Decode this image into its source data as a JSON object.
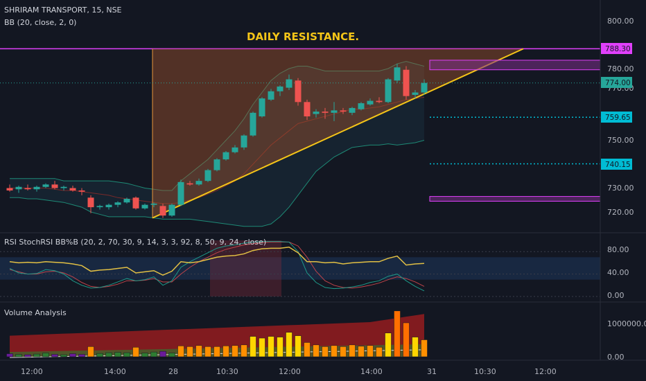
{
  "header": {
    "symbol_line": "SHRIRAM TRANSPORT, 15, NSE",
    "indicator_line": "BB (20, close, 2, 0)"
  },
  "annotation": {
    "title": "DAILY RESISTANCE."
  },
  "rsi_pane": {
    "label": "RSI StochRSI BB%B (20, 2, 70, 30, 9, 14, 3, 3, 92, 8, 50, 9, 24, close)"
  },
  "volume_pane": {
    "label": "Volume Analysis"
  },
  "colors": {
    "background": "#131722",
    "up": "#26a69a",
    "down": "#ef5350",
    "triangle_fill": "#a0522d",
    "trendline": "#f5c518",
    "resistance": "#e040fb",
    "level_cyan": "#00bcd4",
    "bollinger": "#1e8a76",
    "rsi_line": "#e2c044",
    "vol_red_band": "#b01e1e",
    "vol_green_band": "#2e7d32"
  },
  "price_axis": {
    "ticks": [
      "800.00",
      "780.00",
      "770.00",
      "750.00",
      "730.00",
      "720.00"
    ],
    "tags": [
      {
        "label": "788.30",
        "color": "#e040fb",
        "text_color": "#131722"
      },
      {
        "label": "774.00",
        "color": "#26a69a",
        "text_color": "#131722"
      },
      {
        "label": "759.65",
        "color": "#00bcd4",
        "text_color": "#131722"
      },
      {
        "label": "740.15",
        "color": "#00bcd4",
        "text_color": "#131722"
      }
    ]
  },
  "rsi_axis": {
    "ticks": [
      "80.00",
      "40.00",
      "0.00"
    ]
  },
  "volume_axis": {
    "ticks": [
      "1000000.00",
      "0.00"
    ]
  },
  "time_axis": {
    "labels": [
      "12:00",
      "14:00",
      "28",
      "10:30",
      "12:00",
      "14:00",
      "31",
      "10:30",
      "12:00"
    ]
  },
  "chart_data": {
    "type": "candlestick",
    "symbol": "SHRIRAM TRANSPORT",
    "interval": "15",
    "exchange": "NSE",
    "ohlc": [
      {
        "o": 730.0,
        "h": 731.5,
        "l": 728.5,
        "c": 729.0
      },
      {
        "o": 729.5,
        "h": 731.0,
        "l": 728.0,
        "c": 730.5
      },
      {
        "o": 730.0,
        "h": 731.5,
        "l": 729.0,
        "c": 729.5
      },
      {
        "o": 729.5,
        "h": 731.0,
        "l": 728.5,
        "c": 730.5
      },
      {
        "o": 730.5,
        "h": 732.0,
        "l": 730.0,
        "c": 731.5
      },
      {
        "o": 731.5,
        "h": 733.0,
        "l": 729.5,
        "c": 730.0
      },
      {
        "o": 730.0,
        "h": 731.0,
        "l": 729.0,
        "c": 730.5
      },
      {
        "o": 730.0,
        "h": 731.0,
        "l": 728.5,
        "c": 729.0
      },
      {
        "o": 729.0,
        "h": 730.0,
        "l": 727.0,
        "c": 728.5
      },
      {
        "o": 726.0,
        "h": 727.0,
        "l": 719.5,
        "c": 722.0
      },
      {
        "o": 722.0,
        "h": 723.0,
        "l": 721.0,
        "c": 722.5
      },
      {
        "o": 722.0,
        "h": 723.5,
        "l": 721.0,
        "c": 723.0
      },
      {
        "o": 723.0,
        "h": 724.5,
        "l": 722.0,
        "c": 724.0
      },
      {
        "o": 724.0,
        "h": 726.0,
        "l": 723.5,
        "c": 725.5
      },
      {
        "o": 726.0,
        "h": 726.5,
        "l": 721.0,
        "c": 721.5
      },
      {
        "o": 721.5,
        "h": 723.5,
        "l": 721.0,
        "c": 723.0
      },
      {
        "o": 723.0,
        "h": 724.0,
        "l": 722.0,
        "c": 723.5
      },
      {
        "o": 722.5,
        "h": 723.5,
        "l": 717.5,
        "c": 718.5
      },
      {
        "o": 718.5,
        "h": 723.5,
        "l": 718.0,
        "c": 723.0
      },
      {
        "o": 723.0,
        "h": 733.5,
        "l": 722.5,
        "c": 732.5
      },
      {
        "o": 732.0,
        "h": 733.0,
        "l": 731.0,
        "c": 731.5
      },
      {
        "o": 731.5,
        "h": 734.0,
        "l": 731.0,
        "c": 733.0
      },
      {
        "o": 733.0,
        "h": 738.0,
        "l": 732.5,
        "c": 737.5
      },
      {
        "o": 737.5,
        "h": 742.5,
        "l": 737.0,
        "c": 742.0
      },
      {
        "o": 742.0,
        "h": 745.5,
        "l": 741.5,
        "c": 745.0
      },
      {
        "o": 745.0,
        "h": 748.0,
        "l": 744.5,
        "c": 747.0
      },
      {
        "o": 747.0,
        "h": 752.5,
        "l": 746.0,
        "c": 752.0
      },
      {
        "o": 752.0,
        "h": 762.0,
        "l": 751.5,
        "c": 761.5
      },
      {
        "o": 760.0,
        "h": 768.0,
        "l": 759.5,
        "c": 767.5
      },
      {
        "o": 767.0,
        "h": 771.5,
        "l": 766.5,
        "c": 770.5
      },
      {
        "o": 770.5,
        "h": 773.0,
        "l": 768.5,
        "c": 772.5
      },
      {
        "o": 772.0,
        "h": 777.5,
        "l": 771.0,
        "c": 775.5
      },
      {
        "o": 775.0,
        "h": 776.0,
        "l": 764.5,
        "c": 766.0
      },
      {
        "o": 766.0,
        "h": 767.0,
        "l": 758.5,
        "c": 760.0
      },
      {
        "o": 761.0,
        "h": 763.0,
        "l": 759.5,
        "c": 762.0
      },
      {
        "o": 762.0,
        "h": 763.5,
        "l": 759.0,
        "c": 761.5
      },
      {
        "o": 761.5,
        "h": 766.0,
        "l": 758.0,
        "c": 762.5
      },
      {
        "o": 762.5,
        "h": 763.5,
        "l": 761.0,
        "c": 762.0
      },
      {
        "o": 761.5,
        "h": 764.0,
        "l": 760.5,
        "c": 763.5
      },
      {
        "o": 763.0,
        "h": 766.0,
        "l": 762.5,
        "c": 765.5
      },
      {
        "o": 765.0,
        "h": 767.5,
        "l": 764.5,
        "c": 766.5
      },
      {
        "o": 766.5,
        "h": 768.0,
        "l": 765.5,
        "c": 766.0
      },
      {
        "o": 766.0,
        "h": 776.0,
        "l": 765.5,
        "c": 775.5
      },
      {
        "o": 775.0,
        "h": 782.0,
        "l": 774.0,
        "c": 780.5
      },
      {
        "o": 779.5,
        "h": 781.0,
        "l": 767.0,
        "c": 768.5
      },
      {
        "o": 769.0,
        "h": 771.0,
        "l": 767.5,
        "c": 770.0
      },
      {
        "o": 770.0,
        "h": 775.5,
        "l": 769.0,
        "c": 774.0
      }
    ],
    "bollinger": {
      "upper": [
        734,
        734,
        734,
        734,
        734,
        734,
        733,
        733,
        733,
        733,
        733,
        733,
        732.5,
        732,
        731,
        730,
        729.5,
        729,
        729,
        733,
        736,
        739,
        742,
        746,
        750,
        754,
        759,
        765,
        770,
        775,
        778,
        780,
        781,
        781,
        780,
        779,
        779,
        779,
        779,
        779,
        779,
        779,
        780,
        782,
        783,
        782,
        781
      ],
      "basis": [
        730,
        730,
        730,
        730,
        730,
        729.5,
        729,
        729,
        728.5,
        728,
        727.5,
        727,
        726,
        725.5,
        725,
        724.5,
        724,
        723.5,
        723.5,
        724,
        725,
        726,
        727.5,
        729,
        731,
        733,
        736,
        740,
        744,
        748,
        751,
        754,
        757,
        758,
        759,
        760,
        761,
        762,
        763,
        763,
        763.5,
        764,
        765,
        766,
        767,
        767.5,
        768
      ],
      "lower": [
        726,
        726,
        725.5,
        725.5,
        725,
        724.5,
        724,
        723,
        722,
        720,
        719,
        718,
        718,
        718,
        718,
        718,
        717.5,
        717,
        717,
        717,
        717,
        716.5,
        716,
        715.5,
        715,
        714.5,
        714,
        714,
        714,
        715,
        718,
        722,
        727,
        732,
        737,
        740,
        743,
        745,
        747,
        747.5,
        748,
        748,
        748.5,
        748,
        748.5,
        749,
        750
      ]
    },
    "resistance_level": 788.3,
    "last_price": 774.0,
    "levels": [
      759.65,
      740.15
    ],
    "price_ylim": [
      713,
      804
    ],
    "rsi": {
      "ylim": [
        -5,
        105
      ],
      "bands": [
        30,
        70
      ],
      "rsi": [
        62,
        60,
        61,
        60,
        62,
        61,
        60,
        58,
        55,
        45,
        47,
        48,
        50,
        52,
        42,
        44,
        46,
        38,
        45,
        62,
        60,
        62,
        66,
        70,
        72,
        73,
        76,
        82,
        85,
        86,
        86,
        88,
        78,
        62,
        62,
        60,
        61,
        58,
        60,
        61,
        62,
        62,
        68,
        72,
        56,
        58,
        59
      ],
      "stoch_k": [
        50,
        42,
        40,
        41,
        48,
        46,
        40,
        28,
        20,
        15,
        16,
        20,
        26,
        32,
        28,
        30,
        35,
        20,
        28,
        52,
        62,
        70,
        78,
        86,
        90,
        92,
        95,
        97,
        98,
        98,
        98,
        97,
        80,
        42,
        25,
        16,
        14,
        15,
        17,
        20,
        25,
        28,
        36,
        40,
        28,
        18,
        10
      ],
      "stoch_d": [
        48,
        44,
        40,
        40,
        44,
        45,
        42,
        35,
        25,
        18,
        16,
        18,
        22,
        28,
        28,
        29,
        32,
        26,
        26,
        40,
        52,
        62,
        70,
        78,
        84,
        88,
        92,
        94,
        96,
        97,
        97,
        97,
        90,
        70,
        45,
        28,
        20,
        16,
        15,
        17,
        20,
        24,
        30,
        35,
        32,
        26,
        18
      ]
    },
    "volume": {
      "ylim": [
        0,
        1700000
      ],
      "bars": [
        90000,
        70000,
        60000,
        80000,
        110000,
        70000,
        60000,
        90000,
        70000,
        300000,
        100000,
        120000,
        130000,
        120000,
        280000,
        110000,
        140000,
        160000,
        110000,
        320000,
        300000,
        330000,
        300000,
        300000,
        320000,
        330000,
        350000,
        600000,
        550000,
        600000,
        580000,
        720000,
        620000,
        420000,
        350000,
        300000,
        330000,
        300000,
        350000,
        310000,
        330000,
        280000,
        700000,
        1350000,
        1000000,
        580000,
        500000
      ]
    }
  }
}
